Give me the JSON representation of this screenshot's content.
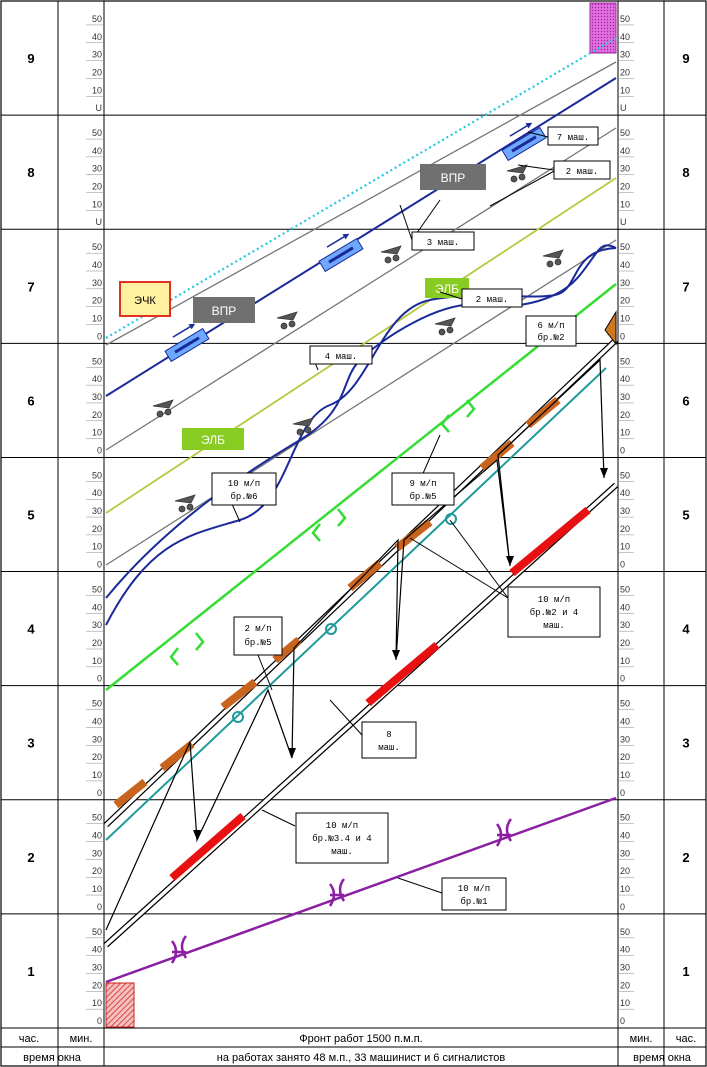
{
  "axis": {
    "hours": [
      "1",
      "2",
      "3",
      "4",
      "5",
      "6",
      "7",
      "8",
      "9"
    ],
    "minutes_regular": [
      "0",
      "10",
      "20",
      "30",
      "40",
      "50"
    ],
    "minutes_top_hour_left": [
      "0",
      "10",
      "20",
      "30",
      "40",
      "50"
    ],
    "minutes_hour8_left": [
      "U",
      "10",
      "20",
      "30",
      "40",
      "50"
    ],
    "minutes_hour9_left": [
      "U",
      "10",
      "20",
      "30",
      "40",
      "50"
    ],
    "minutes_hour9_right": [
      "U",
      "10",
      "20",
      "30",
      "40",
      "50"
    ],
    "minutes_hour8_right": [
      "U",
      "10",
      "20",
      "30",
      "40",
      "50"
    ]
  },
  "footer": {
    "left_hour_label": "час.",
    "left_min_label": "мин.",
    "right_min_label": "мин.",
    "right_hour_label": "час.",
    "window_left": "время окна",
    "window_right": "время окна",
    "front_text": "Фронт работ 1500 п.м.п.",
    "workers_text": "на работах занято 48 м.п., 33 машинист и 6 сигналистов"
  },
  "machines": {
    "vpr_1": "ВПР",
    "vpr_2": "ВПР",
    "elb_1": "ЭЛБ",
    "elb_2": "ЭЛБ",
    "echk": "ЭЧК"
  },
  "callouts": {
    "c7mash": "7 маш.",
    "c2mash_top": "2 маш.",
    "c3mash": "3 маш.",
    "c2mash_mid": "2 маш.",
    "c4mash": "4 маш.",
    "c6mp_l1": "6 м/п",
    "c6mp_l2": "бр.№2",
    "c10mp6_l1": "10 м/п",
    "c10mp6_l2": "бр.№6",
    "c9mp5_l1": "9 м/п",
    "c9mp5_l2": "бр.№5",
    "c10mp24_l1": "10 м/п",
    "c10mp24_l2": "бр.№2 и 4",
    "c10mp24_l3": "маш.",
    "c2mp5_l1": "2 м/п",
    "c2mp5_l2": "бр.№5",
    "c8mash_l1": "8",
    "c8mash_l2": "маш.",
    "c10mp34_l1": "10 м/п",
    "c10mp34_l2": "бр.№3.4 и 4",
    "c10mp34_l3": "маш.",
    "c10mp1_l1": "10 м/п",
    "c10mp1_l2": "бр.№1"
  },
  "colors": {
    "purple": "#8b1fa3",
    "green": "#33dd33",
    "teal": "#1e9a9a",
    "navy": "#1a2a9a",
    "olive": "#b8c840",
    "cyan": "#22c8e0",
    "red": "#e81010",
    "orange": "#c8641e",
    "gray_box": "#707070",
    "elb_box": "#88cc22"
  }
}
